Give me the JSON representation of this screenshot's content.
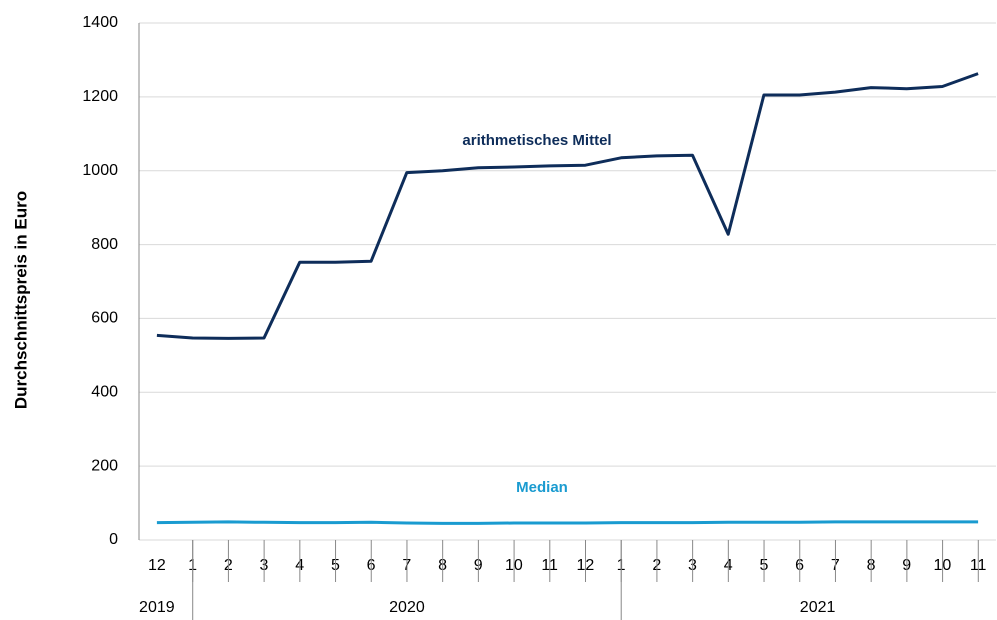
{
  "chart_data": {
    "type": "line",
    "ylabel": "Durchschnittspreis in Euro",
    "categories": [
      "12",
      "1",
      "2",
      "3",
      "4",
      "5",
      "6",
      "7",
      "8",
      "9",
      "10",
      "11",
      "12",
      "1",
      "2",
      "3",
      "4",
      "5",
      "6",
      "7",
      "8",
      "9",
      "10",
      "11"
    ],
    "year_groups": [
      {
        "label": "2019",
        "count": 1
      },
      {
        "label": "2020",
        "count": 12
      },
      {
        "label": "2021",
        "count": 11
      }
    ],
    "series": [
      {
        "name": "arithmetisches Mittel",
        "color": "#0e2d5a",
        "values": [
          554,
          547,
          546,
          547,
          752,
          752,
          755,
          995,
          1000,
          1008,
          1010,
          1013,
          1015,
          1035,
          1040,
          1042,
          828,
          1205,
          1205,
          1213,
          1225,
          1222,
          1228,
          1263
        ]
      },
      {
        "name": "Median",
        "color": "#1a9bd0",
        "values": [
          47,
          48,
          49,
          48,
          47,
          47,
          48,
          46,
          45,
          45,
          46,
          46,
          46,
          47,
          47,
          47,
          48,
          48,
          48,
          49,
          49,
          49,
          49,
          49
        ]
      }
    ],
    "ylim": [
      0,
      1400
    ],
    "yticks": [
      0,
      200,
      400,
      600,
      800,
      1000,
      1200,
      1400
    ],
    "grid": true
  }
}
